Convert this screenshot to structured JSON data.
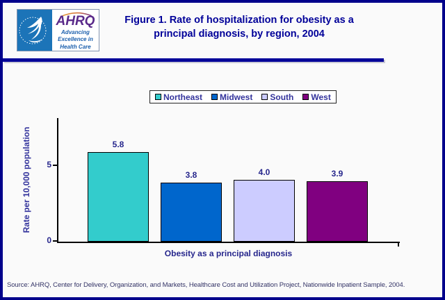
{
  "header": {
    "title_line1": "Figure 1. Rate of hospitalization for obesity as a",
    "title_line2": "principal diagnosis, by region, 2004",
    "logo": {
      "ahrq_acronym": "AHRQ",
      "tagline_line1": "Advancing",
      "tagline_line2": "Excellence in",
      "tagline_line3": "Health Care"
    }
  },
  "chart_data": {
    "type": "bar",
    "title": "Figure 1. Rate of hospitalization for obesity as a principal diagnosis, by region, 2004",
    "xlabel": "Obesity as a principal diagnosis",
    "ylabel": "Rate per 10,000 population",
    "ylim": [
      0,
      8
    ],
    "yticks": [
      0,
      5
    ],
    "grid": false,
    "legend_position": "top-center",
    "categories": [
      "Obesity as a principal diagnosis"
    ],
    "series": [
      {
        "name": "Northeast",
        "value": 5.8,
        "label": "5.8",
        "color": "#33cccc"
      },
      {
        "name": "Midwest",
        "value": 3.8,
        "label": "3.8",
        "color": "#0066cc"
      },
      {
        "name": "South",
        "value": 4.0,
        "label": "4.0",
        "color": "#ccccff"
      },
      {
        "name": "West",
        "value": 3.9,
        "label": "3.9",
        "color": "#800080"
      }
    ]
  },
  "source": "Source: AHRQ, Center for Delivery, Organization, and Markets, Healthcare Cost and Utilization Project, Nationwide Inpatient Sample, 2004.",
  "colors": {
    "title_navy": "#000099",
    "border_navy": "#00008b",
    "chart_text_navy": "#26268c",
    "hhs_blue": "#1c74b8",
    "ahrq_purple": "#5a2a8a",
    "tagline_blue": "#1b5fad"
  }
}
